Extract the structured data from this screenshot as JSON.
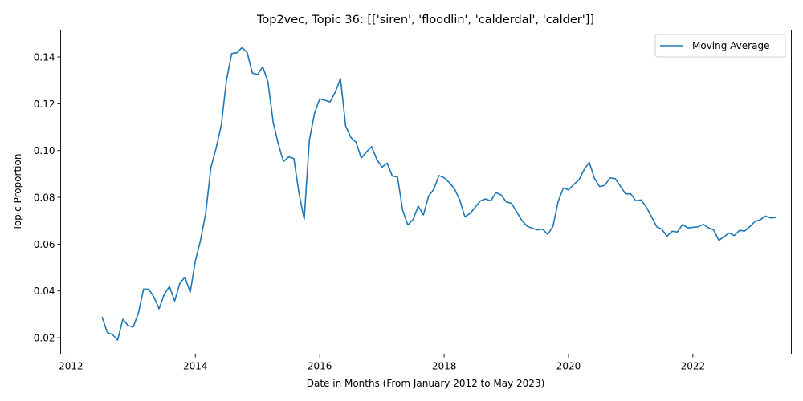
{
  "colors": {
    "series": "#1f77b4",
    "axes": "#000000",
    "legend_border": "#cccccc"
  },
  "chart_data": {
    "type": "line",
    "title": "Top2vec, Topic 36: [['siren', 'floodlin', 'calderdal', 'calder']]",
    "xlabel": "Date in Months (From January 2012 to May 2023)",
    "ylabel": "Topic Proportion",
    "xlim": [
      "2011-11",
      "2023-08"
    ],
    "ylim": [
      0.013,
      0.1515
    ],
    "xticks": [
      "2012",
      "2014",
      "2016",
      "2018",
      "2020",
      "2022"
    ],
    "yticks": [
      "0.02",
      "0.04",
      "0.06",
      "0.08",
      "0.10",
      "0.12",
      "0.14"
    ],
    "legend": {
      "position": "top-right",
      "entries": [
        "Moving Average"
      ]
    },
    "grid": false,
    "series": [
      {
        "name": "Moving Average",
        "x": [
          "2012-07",
          "2012-08",
          "2012-09",
          "2012-10",
          "2012-11",
          "2012-12",
          "2013-01",
          "2013-02",
          "2013-03",
          "2013-04",
          "2013-05",
          "2013-06",
          "2013-07",
          "2013-08",
          "2013-09",
          "2013-10",
          "2013-11",
          "2013-12",
          "2014-01",
          "2014-02",
          "2014-03",
          "2014-04",
          "2014-05",
          "2014-06",
          "2014-07",
          "2014-08",
          "2014-09",
          "2014-10",
          "2014-11",
          "2014-12",
          "2015-01",
          "2015-02",
          "2015-03",
          "2015-04",
          "2015-05",
          "2015-06",
          "2015-07",
          "2015-08",
          "2015-09",
          "2015-10",
          "2015-11",
          "2015-12",
          "2016-01",
          "2016-02",
          "2016-03",
          "2016-04",
          "2016-05",
          "2016-06",
          "2016-07",
          "2016-08",
          "2016-09",
          "2016-10",
          "2016-11",
          "2016-12",
          "2017-01",
          "2017-02",
          "2017-03",
          "2017-04",
          "2017-05",
          "2017-06",
          "2017-07",
          "2017-08",
          "2017-09",
          "2017-10",
          "2017-11",
          "2017-12",
          "2018-01",
          "2018-02",
          "2018-03",
          "2018-04",
          "2018-05",
          "2018-06",
          "2018-07",
          "2018-08",
          "2018-09",
          "2018-10",
          "2018-11",
          "2018-12",
          "2019-01",
          "2019-02",
          "2019-03",
          "2019-04",
          "2019-05",
          "2019-06",
          "2019-07",
          "2019-08",
          "2019-09",
          "2019-10",
          "2019-11",
          "2019-12",
          "2020-01",
          "2020-02",
          "2020-03",
          "2020-04",
          "2020-05",
          "2020-06",
          "2020-07",
          "2020-08",
          "2020-09",
          "2020-10",
          "2020-11",
          "2020-12",
          "2021-01",
          "2021-02",
          "2021-03",
          "2021-04",
          "2021-05",
          "2021-06",
          "2021-07",
          "2021-08",
          "2021-09",
          "2021-10",
          "2021-11",
          "2021-12",
          "2022-01",
          "2022-02",
          "2022-03",
          "2022-04",
          "2022-05",
          "2022-06",
          "2022-07",
          "2022-08",
          "2022-09",
          "2022-10",
          "2022-11",
          "2022-12",
          "2023-01",
          "2023-02",
          "2023-03",
          "2023-04",
          "2023-05"
        ],
        "y": [
          0.0289,
          0.0222,
          0.0214,
          0.019,
          0.0279,
          0.0252,
          0.0246,
          0.0305,
          0.0408,
          0.0408,
          0.0374,
          0.0324,
          0.0386,
          0.0419,
          0.0357,
          0.0433,
          0.0459,
          0.0394,
          0.0529,
          0.0617,
          0.0733,
          0.0928,
          0.101,
          0.1108,
          0.13,
          0.1415,
          0.1418,
          0.144,
          0.1419,
          0.1331,
          0.1325,
          0.1358,
          0.1294,
          0.1123,
          0.1028,
          0.0953,
          0.0973,
          0.0966,
          0.0817,
          0.0707,
          0.1046,
          0.116,
          0.1221,
          0.1215,
          0.1208,
          0.125,
          0.1308,
          0.1105,
          0.1056,
          0.1036,
          0.0968,
          0.0994,
          0.1017,
          0.0963,
          0.0929,
          0.0946,
          0.0891,
          0.0887,
          0.0744,
          0.0682,
          0.0705,
          0.0763,
          0.0725,
          0.0805,
          0.0834,
          0.0893,
          0.0884,
          0.0863,
          0.0836,
          0.079,
          0.0717,
          0.0731,
          0.0758,
          0.0785,
          0.0793,
          0.0785,
          0.082,
          0.081,
          0.078,
          0.0775,
          0.0738,
          0.0701,
          0.0677,
          0.0668,
          0.0661,
          0.0664,
          0.0642,
          0.0676,
          0.0782,
          0.084,
          0.0832,
          0.0855,
          0.0874,
          0.0918,
          0.095,
          0.0881,
          0.0846,
          0.0851,
          0.0883,
          0.088,
          0.0848,
          0.0815,
          0.0815,
          0.0785,
          0.0789,
          0.0759,
          0.0718,
          0.0675,
          0.0664,
          0.0634,
          0.0655,
          0.0652,
          0.0684,
          0.0669,
          0.0672,
          0.0674,
          0.0685,
          0.067,
          0.0661,
          0.0616,
          0.0632,
          0.0648,
          0.0637,
          0.0659,
          0.0656,
          0.0675,
          0.0697,
          0.0704,
          0.072,
          0.0712,
          0.0714
        ]
      }
    ]
  }
}
